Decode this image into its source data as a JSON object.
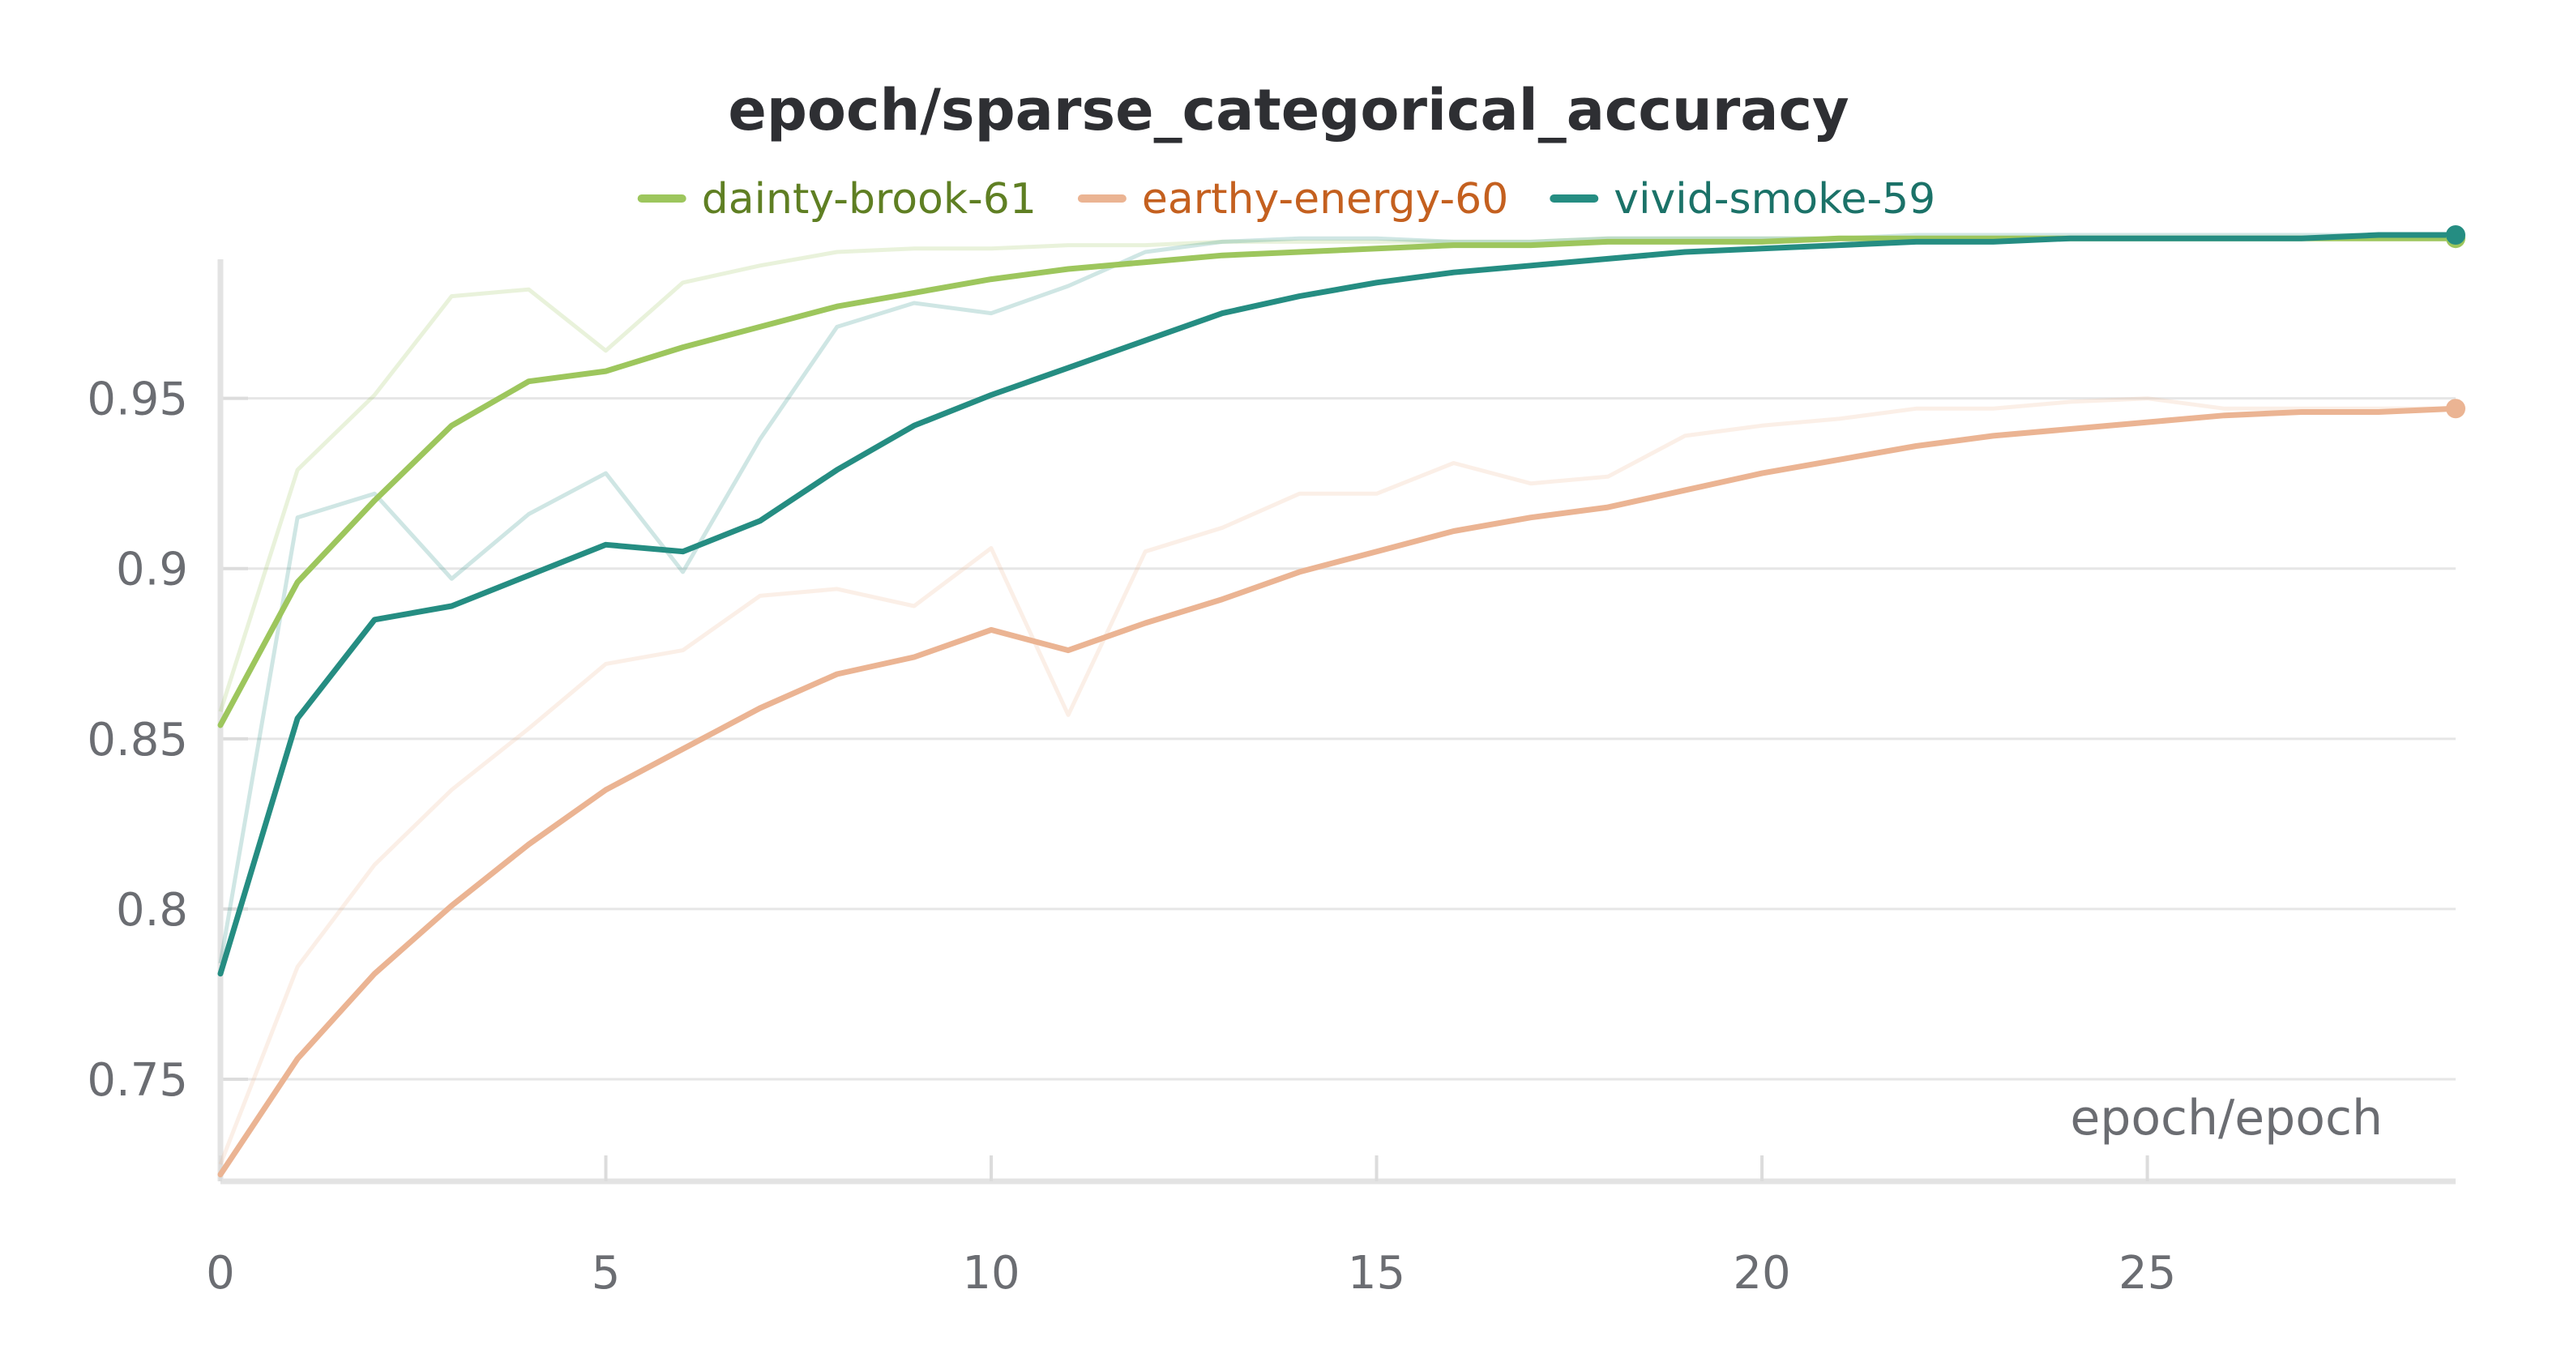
{
  "chart_data": {
    "type": "line",
    "title": "epoch/sparse_categorical_accuracy",
    "xlabel": "epoch/epoch",
    "ylabel": "",
    "xlim": [
      0,
      29
    ],
    "ylim": [
      0.72,
      0.998
    ],
    "xticks": [
      0,
      5,
      10,
      15,
      20,
      25
    ],
    "xtick_labels": [
      "0",
      "5",
      "10",
      "15",
      "20",
      "25"
    ],
    "yticks": [
      0.75,
      0.8,
      0.85,
      0.9,
      0.95
    ],
    "ytick_labels": [
      "0.75",
      "0.8",
      "0.85",
      "0.9",
      "0.95"
    ],
    "grid": "horizontal",
    "legend_position": "top",
    "x": [
      0,
      1,
      2,
      3,
      4,
      5,
      6,
      7,
      8,
      9,
      10,
      11,
      12,
      13,
      14,
      15,
      16,
      17,
      18,
      19,
      20,
      21,
      22,
      23,
      24,
      25,
      26,
      27,
      28,
      29
    ],
    "series": [
      {
        "name": "dainty-brook-61",
        "color": "#9dc65d",
        "label_color": "#5f7f23",
        "raw": [
          0.858,
          0.929,
          0.951,
          0.98,
          0.982,
          0.964,
          0.984,
          0.989,
          0.993,
          0.994,
          0.994,
          0.995,
          0.995,
          0.996,
          0.996,
          0.996,
          0.996,
          0.996,
          0.997,
          0.997,
          0.997,
          0.997,
          0.997,
          0.997,
          0.997,
          0.997,
          0.997,
          0.997,
          0.997,
          0.997
        ],
        "smoothed": [
          0.854,
          0.896,
          0.92,
          0.942,
          0.955,
          0.958,
          0.965,
          0.971,
          0.977,
          0.981,
          0.985,
          0.988,
          0.99,
          0.992,
          0.993,
          0.994,
          0.995,
          0.995,
          0.996,
          0.996,
          0.996,
          0.997,
          0.997,
          0.997,
          0.997,
          0.997,
          0.997,
          0.997,
          0.997,
          0.997
        ]
      },
      {
        "name": "earthy-energy-60",
        "color": "#ebb493",
        "label_color": "#c4601f",
        "raw": [
          0.725,
          0.783,
          0.813,
          0.835,
          0.853,
          0.872,
          0.876,
          0.892,
          0.894,
          0.889,
          0.906,
          0.857,
          0.905,
          0.912,
          0.922,
          0.922,
          0.931,
          0.925,
          0.927,
          0.939,
          0.942,
          0.944,
          0.947,
          0.947,
          0.949,
          0.95,
          0.947,
          0.947,
          0.947,
          0.947
        ],
        "smoothed": [
          0.722,
          0.756,
          0.781,
          0.801,
          0.819,
          0.835,
          0.847,
          0.859,
          0.869,
          0.874,
          0.882,
          0.876,
          0.884,
          0.891,
          0.899,
          0.905,
          0.911,
          0.915,
          0.918,
          0.923,
          0.928,
          0.932,
          0.936,
          0.939,
          0.941,
          0.943,
          0.945,
          0.946,
          0.946,
          0.947
        ]
      },
      {
        "name": "vivid-smoke-59",
        "color": "#258d82",
        "label_color": "#1b7268",
        "raw": [
          0.784,
          0.915,
          0.922,
          0.897,
          0.916,
          0.928,
          0.899,
          0.938,
          0.971,
          0.978,
          0.975,
          0.983,
          0.993,
          0.996,
          0.997,
          0.997,
          0.996,
          0.996,
          0.997,
          0.997,
          0.997,
          0.997,
          0.998,
          0.998,
          0.998,
          0.998,
          0.998,
          0.998,
          0.998,
          0.998
        ],
        "smoothed": [
          0.781,
          0.856,
          0.885,
          0.889,
          0.898,
          0.907,
          0.905,
          0.914,
          0.929,
          0.942,
          0.951,
          0.959,
          0.967,
          0.975,
          0.98,
          0.984,
          0.987,
          0.989,
          0.991,
          0.993,
          0.994,
          0.995,
          0.996,
          0.996,
          0.997,
          0.997,
          0.997,
          0.997,
          0.998,
          0.998
        ]
      }
    ]
  }
}
